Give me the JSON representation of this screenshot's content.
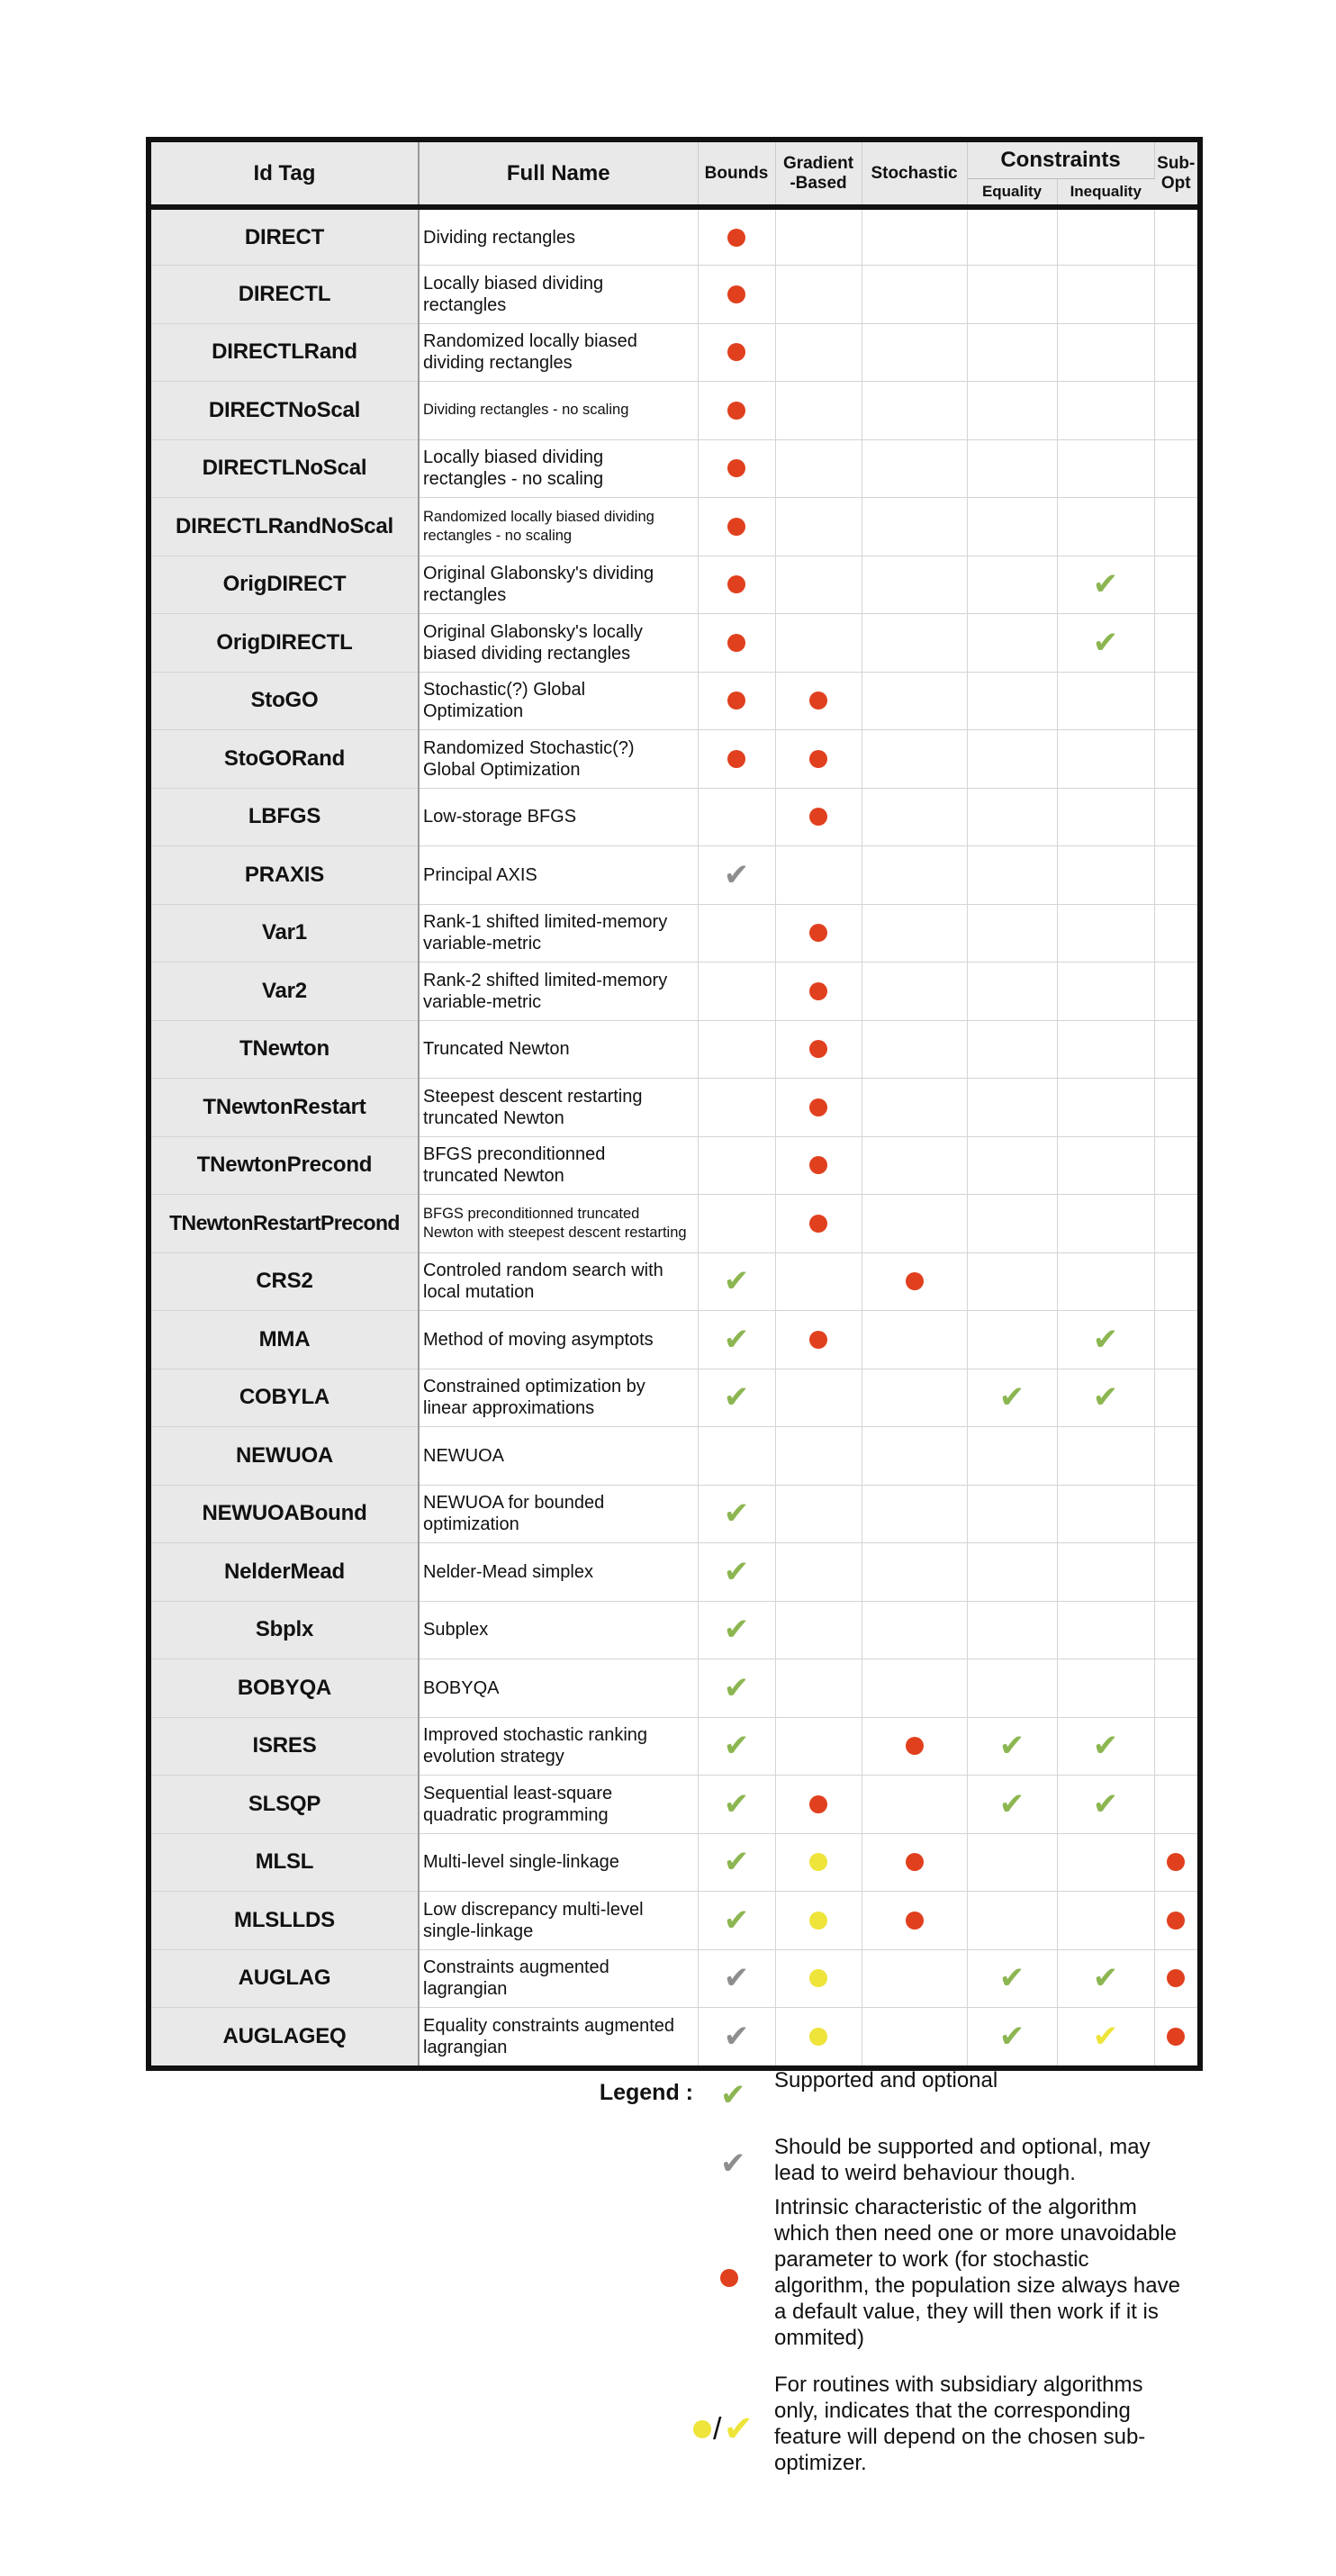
{
  "header": {
    "id_tag": "Id Tag",
    "full_name": "Full Name",
    "bounds": "Bounds",
    "gradient_1": "Gradient",
    "gradient_2": "-Based",
    "stochastic": "Stochastic",
    "constraints": "Constraints",
    "equality": "Equality",
    "inequality": "Inequality",
    "subopt_1": "Sub-",
    "subopt_2": "Opt"
  },
  "marks": {
    "g": "green-check",
    "k": "gray-check",
    "r": "red-dot",
    "y": "yellow-dot",
    "Y": "yellow-check"
  },
  "colors": {
    "red": "#e0401e",
    "green": "#8cb651",
    "gray": "#8e8e8e",
    "yellow": "#eee43a"
  },
  "rows": [
    {
      "id": "DIRECT",
      "name1": "Dividing rectangles",
      "name2": "",
      "cells": [
        "r",
        "",
        "",
        "",
        "",
        ""
      ]
    },
    {
      "id": "DIRECTL",
      "name1": "Locally biased dividing",
      "name2": "rectangles",
      "cells": [
        "r",
        "",
        "",
        "",
        "",
        ""
      ]
    },
    {
      "id": "DIRECTLRand",
      "name1": "Randomized locally biased",
      "name2": "dividing rectangles",
      "cells": [
        "r",
        "",
        "",
        "",
        "",
        ""
      ]
    },
    {
      "id": "DIRECTNoScal",
      "name1": "Dividing rectangles - no scaling",
      "name2": "",
      "cells": [
        "r",
        "",
        "",
        "",
        "",
        ""
      ]
    },
    {
      "id": "DIRECTLNoScal",
      "name1": "Locally biased dividing",
      "name2": "rectangles - no scaling",
      "cells": [
        "r",
        "",
        "",
        "",
        "",
        ""
      ]
    },
    {
      "id": "DIRECTLRandNoScal",
      "name1": "Randomized locally biased dividing",
      "name2": "rectangles - no scaling",
      "cells": [
        "r",
        "",
        "",
        "",
        "",
        ""
      ]
    },
    {
      "id": "OrigDIRECT",
      "name1": "Original Glabonsky's dividing",
      "name2": "rectangles",
      "cells": [
        "r",
        "",
        "",
        "",
        "g",
        ""
      ]
    },
    {
      "id": "OrigDIRECTL",
      "name1": "Original Glabonsky's locally",
      "name2": "biased dividing rectangles",
      "cells": [
        "r",
        "",
        "",
        "",
        "g",
        ""
      ]
    },
    {
      "id": "StoGO",
      "name1": "Stochastic(?) Global",
      "name2": "Optimization",
      "cells": [
        "r",
        "r",
        "",
        "",
        "",
        ""
      ]
    },
    {
      "id": "StoGORand",
      "name1": "Randomized Stochastic(?)",
      "name2": "Global Optimization",
      "cells": [
        "r",
        "r",
        "",
        "",
        "",
        ""
      ]
    },
    {
      "id": "LBFGS",
      "name1": "Low-storage BFGS",
      "name2": "",
      "cells": [
        "",
        "r",
        "",
        "",
        "",
        ""
      ]
    },
    {
      "id": "PRAXIS",
      "name1": "Principal AXIS",
      "name2": "",
      "cells": [
        "k",
        "",
        "",
        "",
        "",
        ""
      ]
    },
    {
      "id": "Var1",
      "name1": "Rank-1 shifted limited-memory",
      "name2": "variable-metric",
      "cells": [
        "",
        "r",
        "",
        "",
        "",
        ""
      ]
    },
    {
      "id": "Var2",
      "name1": "Rank-2 shifted limited-memory",
      "name2": "variable-metric",
      "cells": [
        "",
        "r",
        "",
        "",
        "",
        ""
      ]
    },
    {
      "id": "TNewton",
      "name1": "Truncated Newton",
      "name2": "",
      "cells": [
        "",
        "r",
        "",
        "",
        "",
        ""
      ]
    },
    {
      "id": "TNewtonRestart",
      "name1": "Steepest descent restarting",
      "name2": "truncated Newton",
      "cells": [
        "",
        "r",
        "",
        "",
        "",
        ""
      ]
    },
    {
      "id": "TNewtonPrecond",
      "name1": "BFGS preconditionned",
      "name2": "truncated Newton",
      "cells": [
        "",
        "r",
        "",
        "",
        "",
        ""
      ]
    },
    {
      "id": "TNewtonRestartPrecond",
      "name1": "BFGS preconditionned truncated",
      "name2": "Newton with steepest descent restarting",
      "cells": [
        "",
        "r",
        "",
        "",
        "",
        ""
      ]
    },
    {
      "id": "CRS2",
      "name1": "Controled random search with",
      "name2": "local mutation",
      "cells": [
        "g",
        "",
        "r",
        "",
        "",
        ""
      ]
    },
    {
      "id": "MMA",
      "name1": "Method of moving asymptots",
      "name2": "",
      "cells": [
        "g",
        "r",
        "",
        "",
        "g",
        ""
      ]
    },
    {
      "id": "COBYLA",
      "name1": "Constrained optimization by",
      "name2": "linear approximations",
      "cells": [
        "g",
        "",
        "",
        "g",
        "g",
        ""
      ]
    },
    {
      "id": "NEWUOA",
      "name1": "NEWUOA",
      "name2": "",
      "cells": [
        "",
        "",
        "",
        "",
        "",
        ""
      ]
    },
    {
      "id": "NEWUOABound",
      "name1": "NEWUOA for bounded",
      "name2": "optimization",
      "cells": [
        "g",
        "",
        "",
        "",
        "",
        ""
      ]
    },
    {
      "id": "NelderMead",
      "name1": "Nelder-Mead simplex",
      "name2": "",
      "cells": [
        "g",
        "",
        "",
        "",
        "",
        ""
      ]
    },
    {
      "id": "Sbplx",
      "name1": "Subplex",
      "name2": "",
      "cells": [
        "g",
        "",
        "",
        "",
        "",
        ""
      ]
    },
    {
      "id": "BOBYQA",
      "name1": "BOBYQA",
      "name2": "",
      "cells": [
        "g",
        "",
        "",
        "",
        "",
        ""
      ]
    },
    {
      "id": "ISRES",
      "name1": "Improved stochastic ranking",
      "name2": "evolution strategy",
      "cells": [
        "g",
        "",
        "r",
        "g",
        "g",
        ""
      ]
    },
    {
      "id": "SLSQP",
      "name1": "Sequential least-square",
      "name2": "quadratic programming",
      "cells": [
        "g",
        "r",
        "",
        "g",
        "g",
        ""
      ]
    },
    {
      "id": "MLSL",
      "name1": "Multi-level single-linkage",
      "name2": "",
      "cells": [
        "g",
        "y",
        "r",
        "",
        "",
        "r"
      ]
    },
    {
      "id": "MLSLLDS",
      "name1": "Low discrepancy multi-level",
      "name2": "single-linkage",
      "cells": [
        "g",
        "y",
        "r",
        "",
        "",
        "r"
      ]
    },
    {
      "id": "AUGLAG",
      "name1": "Constraints augmented",
      "name2": "lagrangian",
      "cells": [
        "k",
        "y",
        "",
        "g",
        "g",
        "r"
      ]
    },
    {
      "id": "AUGLAGEQ",
      "name1": "Equality constraints augmented",
      "name2": "lagrangian",
      "cells": [
        "k",
        "y",
        "",
        "g",
        "Y",
        "r"
      ]
    }
  ],
  "legend": {
    "title": "Legend :",
    "slash": "/",
    "items": [
      {
        "symbol": "green-check",
        "lines": [
          "Supported and optional"
        ]
      },
      {
        "symbol": "gray-check",
        "lines": [
          "Should be supported and optional, may",
          "lead to weird behaviour though."
        ]
      },
      {
        "symbol": "red-dot",
        "lines": [
          "Intrinsic characteristic of the algorithm",
          "which then need one or more unavoidable",
          "parameter to work (for stochastic",
          "algorithm, the population size always have",
          "a default value, they will then work if it is",
          "ommited)"
        ]
      },
      {
        "symbol": "yellow-dot-check",
        "lines": [
          "For routines with subsidiary algorithms",
          "only, indicates that the corresponding",
          "feature will depend on the chosen sub-",
          "optimizer."
        ]
      }
    ]
  }
}
